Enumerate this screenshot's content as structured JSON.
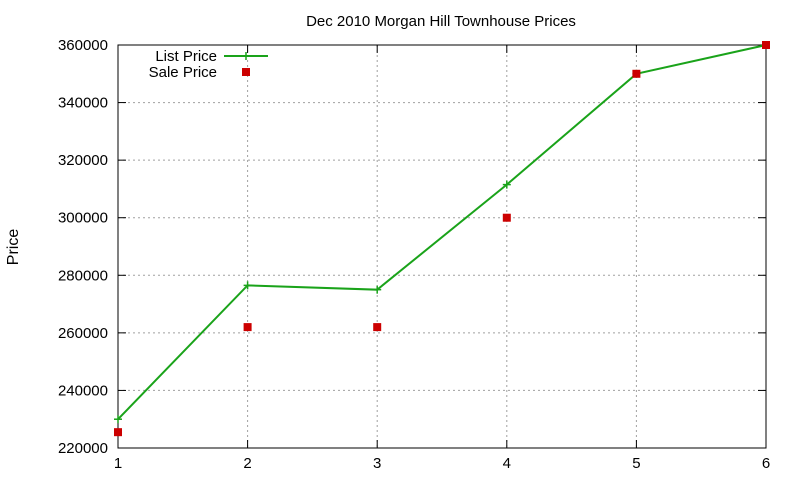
{
  "chart_data": {
    "type": "line",
    "title": "Dec 2010 Morgan Hill Townhouse Prices",
    "xlabel": "",
    "ylabel": "Price",
    "x": [
      1,
      2,
      3,
      4,
      5,
      6
    ],
    "xlim": [
      1,
      6
    ],
    "ylim": [
      220000,
      360000
    ],
    "xticks": [
      "1",
      "2",
      "3",
      "4",
      "5",
      "6"
    ],
    "yticks": [
      "220000",
      "240000",
      "260000",
      "280000",
      "300000",
      "320000",
      "340000",
      "360000"
    ],
    "grid": true,
    "legend_position": "top-left",
    "series": [
      {
        "name": "List Price",
        "style": "line-with-plus-markers",
        "color": "#1aa31a",
        "values": [
          230000,
          276500,
          275000,
          311500,
          350000,
          360000
        ]
      },
      {
        "name": "Sale Price",
        "style": "square-markers",
        "color": "#cc0000",
        "values": [
          225500,
          262000,
          262000,
          300000,
          350000,
          360000
        ]
      }
    ]
  }
}
